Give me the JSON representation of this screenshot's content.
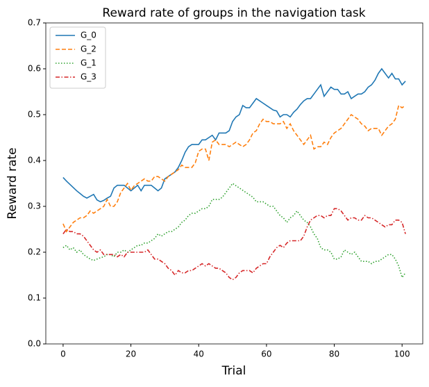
{
  "chart_data": {
    "type": "line",
    "title": "Reward rate of groups in the navigation task",
    "x_label": "Trial",
    "y_label": "Reward rate",
    "x": [
      0,
      1,
      2,
      3,
      4,
      5,
      6,
      7,
      8,
      9,
      10,
      11,
      12,
      13,
      14,
      15,
      16,
      17,
      18,
      19,
      20,
      21,
      22,
      23,
      24,
      25,
      26,
      27,
      28,
      29,
      30,
      31,
      32,
      33,
      34,
      35,
      36,
      37,
      38,
      39,
      40,
      41,
      42,
      43,
      44,
      45,
      46,
      47,
      48,
      49,
      50,
      51,
      52,
      53,
      54,
      55,
      56,
      57,
      58,
      59,
      60,
      61,
      62,
      63,
      64,
      65,
      66,
      67,
      68,
      69,
      70,
      71,
      72,
      73,
      74,
      75,
      76,
      77,
      78,
      79,
      80,
      81,
      82,
      83,
      84,
      85,
      86,
      87,
      88,
      89,
      90,
      91,
      92,
      93,
      94,
      95,
      96,
      97,
      98,
      99,
      100,
      101
    ],
    "series": [
      {
        "name": "G_0",
        "color": "#1f77b4",
        "dash": "solid",
        "values": [
          0.363,
          0.355,
          0.348,
          0.341,
          0.334,
          0.328,
          0.322,
          0.318,
          0.322,
          0.326,
          0.314,
          0.31,
          0.313,
          0.318,
          0.322,
          0.34,
          0.346,
          0.346,
          0.346,
          0.34,
          0.334,
          0.34,
          0.346,
          0.334,
          0.346,
          0.346,
          0.346,
          0.34,
          0.334,
          0.34,
          0.36,
          0.365,
          0.37,
          0.375,
          0.385,
          0.4,
          0.418,
          0.43,
          0.435,
          0.435,
          0.435,
          0.445,
          0.445,
          0.45,
          0.455,
          0.445,
          0.46,
          0.46,
          0.46,
          0.465,
          0.485,
          0.495,
          0.5,
          0.52,
          0.515,
          0.515,
          0.525,
          0.535,
          0.53,
          0.525,
          0.52,
          0.515,
          0.51,
          0.508,
          0.495,
          0.5,
          0.5,
          0.495,
          0.505,
          0.512,
          0.522,
          0.53,
          0.535,
          0.535,
          0.545,
          0.555,
          0.565,
          0.54,
          0.55,
          0.56,
          0.555,
          0.555,
          0.545,
          0.545,
          0.55,
          0.535,
          0.54,
          0.545,
          0.545,
          0.55,
          0.56,
          0.565,
          0.575,
          0.59,
          0.6,
          0.59,
          0.58,
          0.59,
          0.578,
          0.578,
          0.565,
          0.573
        ]
      },
      {
        "name": "G_2",
        "color": "#ff7f0e",
        "dash": "dashed",
        "values": [
          0.262,
          0.245,
          0.255,
          0.265,
          0.27,
          0.275,
          0.275,
          0.28,
          0.29,
          0.285,
          0.29,
          0.295,
          0.3,
          0.315,
          0.3,
          0.3,
          0.31,
          0.33,
          0.34,
          0.35,
          0.335,
          0.345,
          0.35,
          0.355,
          0.36,
          0.355,
          0.355,
          0.365,
          0.365,
          0.36,
          0.355,
          0.365,
          0.37,
          0.375,
          0.38,
          0.39,
          0.385,
          0.385,
          0.385,
          0.395,
          0.42,
          0.425,
          0.425,
          0.4,
          0.44,
          0.445,
          0.435,
          0.435,
          0.435,
          0.43,
          0.435,
          0.44,
          0.435,
          0.43,
          0.435,
          0.445,
          0.46,
          0.465,
          0.48,
          0.49,
          0.485,
          0.485,
          0.48,
          0.48,
          0.48,
          0.485,
          0.47,
          0.48,
          0.465,
          0.455,
          0.445,
          0.435,
          0.445,
          0.455,
          0.425,
          0.43,
          0.43,
          0.44,
          0.435,
          0.45,
          0.46,
          0.465,
          0.47,
          0.48,
          0.49,
          0.5,
          0.495,
          0.49,
          0.48,
          0.475,
          0.465,
          0.47,
          0.47,
          0.47,
          0.455,
          0.465,
          0.475,
          0.48,
          0.49,
          0.52,
          0.515,
          0.52
        ]
      },
      {
        "name": "G_1",
        "color": "#2ca02c",
        "dash": "dotted",
        "values": [
          0.21,
          0.215,
          0.205,
          0.21,
          0.2,
          0.205,
          0.195,
          0.19,
          0.185,
          0.182,
          0.185,
          0.188,
          0.19,
          0.195,
          0.195,
          0.19,
          0.2,
          0.2,
          0.205,
          0.2,
          0.205,
          0.21,
          0.215,
          0.215,
          0.22,
          0.22,
          0.225,
          0.23,
          0.24,
          0.235,
          0.24,
          0.245,
          0.245,
          0.25,
          0.255,
          0.265,
          0.27,
          0.28,
          0.285,
          0.285,
          0.29,
          0.295,
          0.295,
          0.3,
          0.315,
          0.315,
          0.315,
          0.32,
          0.33,
          0.34,
          0.35,
          0.345,
          0.34,
          0.335,
          0.33,
          0.325,
          0.32,
          0.31,
          0.31,
          0.31,
          0.305,
          0.3,
          0.3,
          0.29,
          0.28,
          0.275,
          0.265,
          0.275,
          0.28,
          0.29,
          0.28,
          0.27,
          0.265,
          0.255,
          0.24,
          0.23,
          0.21,
          0.205,
          0.205,
          0.2,
          0.185,
          0.185,
          0.19,
          0.205,
          0.2,
          0.195,
          0.2,
          0.19,
          0.18,
          0.18,
          0.18,
          0.175,
          0.18,
          0.18,
          0.185,
          0.19,
          0.195,
          0.195,
          0.185,
          0.17,
          0.145,
          0.155
        ]
      },
      {
        "name": "G_3",
        "color": "#d62728",
        "dash": "dashdot",
        "values": [
          0.24,
          0.25,
          0.245,
          0.245,
          0.24,
          0.24,
          0.235,
          0.225,
          0.215,
          0.205,
          0.2,
          0.205,
          0.195,
          0.195,
          0.195,
          0.195,
          0.19,
          0.195,
          0.19,
          0.2,
          0.2,
          0.2,
          0.2,
          0.2,
          0.2,
          0.205,
          0.195,
          0.185,
          0.185,
          0.18,
          0.175,
          0.165,
          0.16,
          0.15,
          0.16,
          0.155,
          0.155,
          0.16,
          0.16,
          0.165,
          0.17,
          0.175,
          0.17,
          0.175,
          0.17,
          0.165,
          0.165,
          0.16,
          0.155,
          0.145,
          0.14,
          0.145,
          0.155,
          0.16,
          0.16,
          0.16,
          0.155,
          0.165,
          0.17,
          0.175,
          0.175,
          0.19,
          0.2,
          0.21,
          0.215,
          0.21,
          0.22,
          0.225,
          0.225,
          0.225,
          0.225,
          0.235,
          0.255,
          0.27,
          0.275,
          0.28,
          0.28,
          0.275,
          0.28,
          0.28,
          0.295,
          0.295,
          0.29,
          0.28,
          0.27,
          0.275,
          0.275,
          0.27,
          0.27,
          0.28,
          0.275,
          0.275,
          0.27,
          0.265,
          0.26,
          0.255,
          0.26,
          0.26,
          0.27,
          0.27,
          0.265,
          0.24
        ]
      }
    ],
    "xlim": [
      -5.1,
      106.1
    ],
    "ylim": [
      0,
      0.7
    ],
    "xticks": [
      0,
      20,
      40,
      60,
      80,
      100
    ],
    "yticks": [
      {
        "value": 0,
        "label": "0.0"
      },
      0.1,
      0.2,
      0.3,
      0.4,
      0.5,
      0.6,
      0.7
    ],
    "legend": "upper left"
  }
}
